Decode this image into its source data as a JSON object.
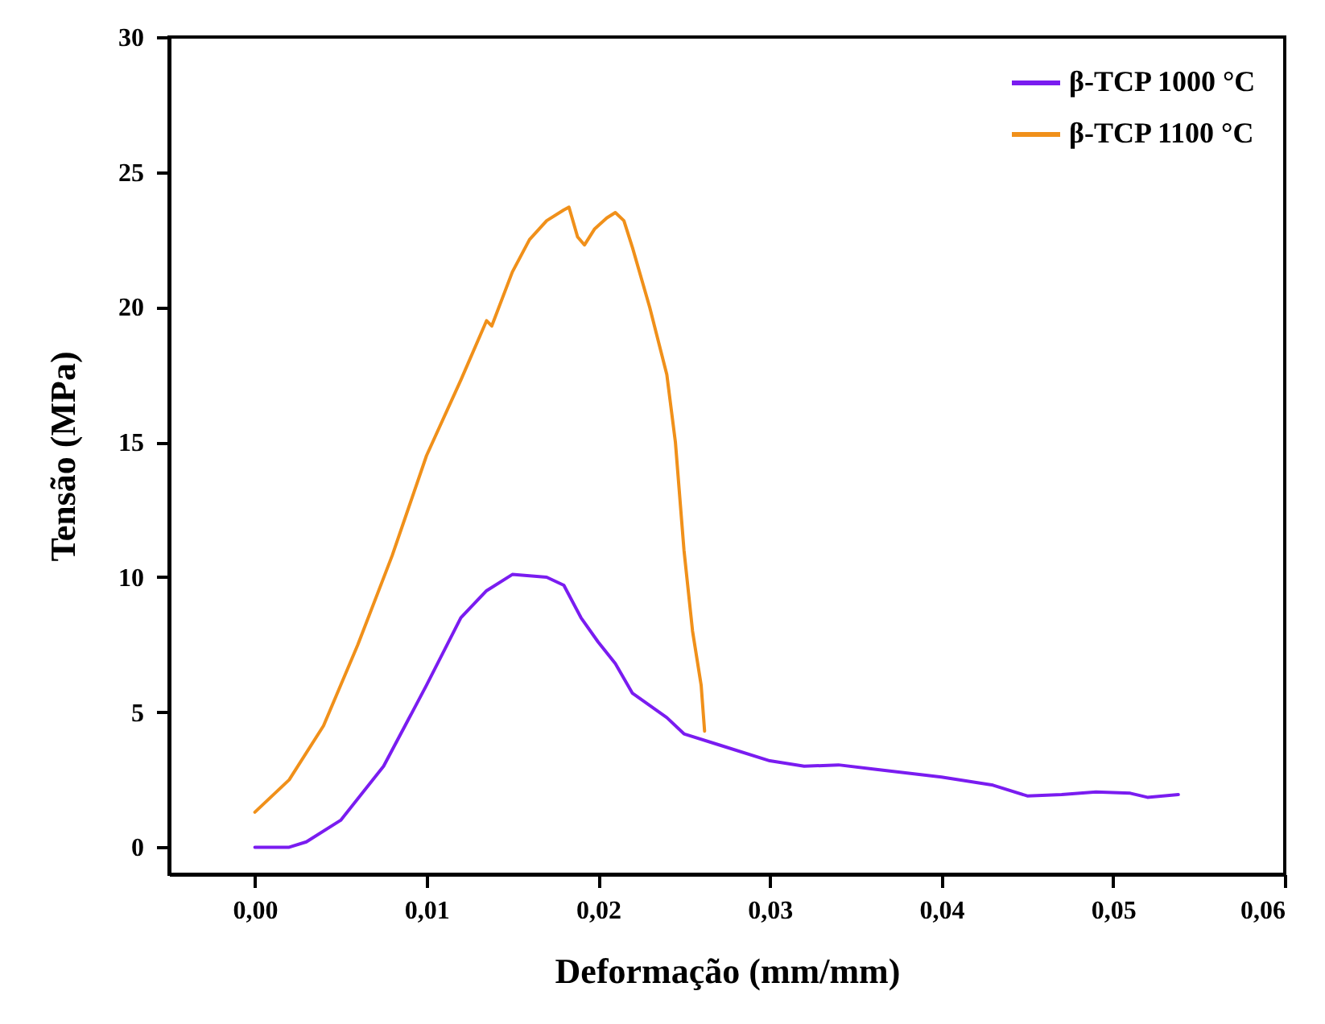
{
  "chart_data": {
    "type": "line",
    "xlabel": "Deformação (mm/mm)",
    "ylabel": "Tensão (MPa)",
    "xlim": [
      -0.005,
      0.06
    ],
    "ylim": [
      -1,
      30
    ],
    "xticks": [
      {
        "value": 0,
        "label": "0,00"
      },
      {
        "value": 0.01,
        "label": "0,01"
      },
      {
        "value": 0.02,
        "label": "0,02"
      },
      {
        "value": 0.03,
        "label": "0,03"
      },
      {
        "value": 0.04,
        "label": "0,04"
      },
      {
        "value": 0.05,
        "label": "0,05"
      },
      {
        "value": 0.06,
        "label": "0,06"
      }
    ],
    "yticks": [
      0,
      5,
      10,
      15,
      20,
      25,
      30
    ],
    "grid": false,
    "legend": "top right",
    "line_style": "solid",
    "series": [
      {
        "name": "β-TCP  1000 °C",
        "color": "#7a1cf0",
        "x": [
          0,
          0.002,
          0.003,
          0.005,
          0.0075,
          0.01,
          0.012,
          0.0135,
          0.015,
          0.017,
          0.018,
          0.019,
          0.02,
          0.021,
          0.022,
          0.024,
          0.025,
          0.027,
          0.03,
          0.032,
          0.034,
          0.036,
          0.04,
          0.043,
          0.045,
          0.047,
          0.049,
          0.051,
          0.052,
          0.0538
        ],
        "values": [
          0,
          0,
          0.2,
          1.0,
          3,
          6,
          8.5,
          9.5,
          10.1,
          10,
          9.7,
          8.5,
          7.6,
          6.8,
          5.7,
          4.8,
          4.2,
          3.8,
          3.2,
          3.0,
          3.05,
          2.9,
          2.6,
          2.3,
          1.9,
          1.95,
          2.05,
          2.0,
          1.85,
          1.95
        ]
      },
      {
        "name": "β-TCP  1100 °C",
        "color": "#f0901a",
        "x": [
          0,
          0.002,
          0.004,
          0.006,
          0.008,
          0.01,
          0.012,
          0.0135,
          0.0138,
          0.015,
          0.016,
          0.017,
          0.018,
          0.0183,
          0.0188,
          0.0192,
          0.0198,
          0.0205,
          0.021,
          0.0215,
          0.022,
          0.023,
          0.024,
          0.0245,
          0.025,
          0.0255,
          0.026,
          0.0262
        ],
        "values": [
          1.3,
          2.5,
          4.5,
          7.5,
          10.8,
          14.5,
          17.3,
          19.5,
          19.3,
          21.3,
          22.5,
          23.2,
          23.6,
          23.7,
          22.6,
          22.3,
          22.9,
          23.3,
          23.5,
          23.2,
          22.2,
          20,
          17.5,
          15,
          11,
          8,
          6,
          4.3
        ]
      }
    ]
  }
}
